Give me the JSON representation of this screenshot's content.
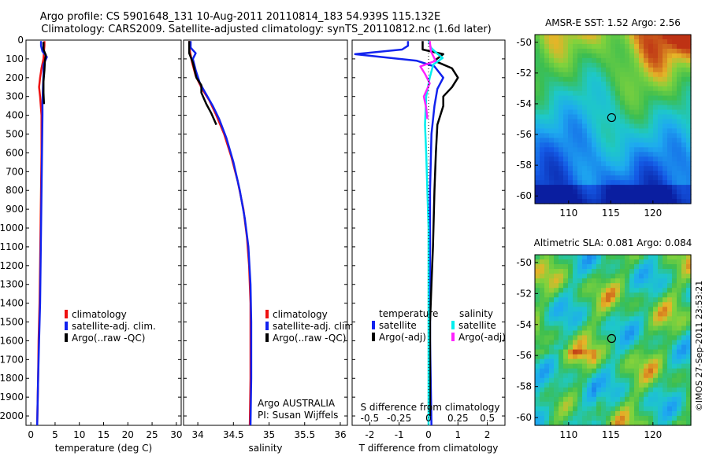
{
  "figure": {
    "title_line1": "Argo profile: CS 5901648_131 10-Aug-2011 20110814_183 54.939S 115.132E",
    "title_line2": "Climatology: CARS2009. Satellite-adjusted climatology: synTS_20110812.nc (1.6d later)",
    "credit": "©IMOS 27-Sep-2011 23:53:21"
  },
  "colors": {
    "climatology": "#ee1111",
    "satellite": "#1122ee",
    "argo": "#000000",
    "salinity_satellite": "#00eeee",
    "salinity_argo": "#ff22ff"
  },
  "chart_data": [
    {
      "type": "line",
      "panel": "temperature",
      "xlabel": "temperature (deg C)",
      "xlim": [
        -1,
        31
      ],
      "xticks": [
        "0",
        "5",
        "10",
        "15",
        "20",
        "25",
        "30"
      ],
      "ylim": [
        2050,
        0
      ],
      "yticks": [
        "0",
        "100",
        "200",
        "300",
        "400",
        "500",
        "600",
        "700",
        "800",
        "900",
        "1000",
        "1100",
        "1200",
        "1300",
        "1400",
        "1500",
        "1600",
        "1700",
        "1800",
        "1900",
        "2000"
      ],
      "legend": [
        "climatology",
        "satellite-adj. clim.",
        "Argo(..raw -QC)"
      ],
      "series": [
        {
          "name": "climatology",
          "color": "#ee1111",
          "points": [
            [
              2.8,
              5
            ],
            [
              2.8,
              30
            ],
            [
              2.7,
              60
            ],
            [
              2.6,
              100
            ],
            [
              2.2,
              150
            ],
            [
              1.9,
              200
            ],
            [
              1.7,
              250
            ],
            [
              1.9,
              300
            ],
            [
              2.2,
              400
            ],
            [
              2.2,
              600
            ],
            [
              2.1,
              800
            ],
            [
              2.0,
              1000
            ],
            [
              1.9,
              1200
            ],
            [
              1.8,
              1400
            ],
            [
              1.6,
              1600
            ],
            [
              1.5,
              1800
            ],
            [
              1.3,
              2050
            ]
          ]
        },
        {
          "name": "satellite-adj. clim.",
          "color": "#1122ee",
          "points": [
            [
              2.1,
              5
            ],
            [
              2.1,
              30
            ],
            [
              2.4,
              60
            ],
            [
              3.3,
              90
            ],
            [
              2.6,
              130
            ],
            [
              2.6,
              180
            ],
            [
              2.5,
              260
            ],
            [
              2.4,
              330
            ],
            [
              2.4,
              400
            ],
            [
              2.3,
              600
            ],
            [
              2.2,
              800
            ],
            [
              2.1,
              1000
            ],
            [
              2.0,
              1200
            ],
            [
              1.9,
              1400
            ],
            [
              1.7,
              1600
            ],
            [
              1.5,
              1800
            ],
            [
              1.3,
              2050
            ]
          ]
        },
        {
          "name": "Argo(..raw -QC)",
          "color": "#000000",
          "points": [
            [
              2.6,
              10
            ],
            [
              2.6,
              50
            ],
            [
              3.1,
              80
            ],
            [
              2.9,
              110
            ],
            [
              2.8,
              160
            ],
            [
              2.6,
              220
            ],
            [
              2.6,
              280
            ],
            [
              2.7,
              340
            ]
          ]
        }
      ]
    },
    {
      "type": "line",
      "panel": "salinity",
      "xlabel": "salinity",
      "xlim": [
        33.8,
        36.1
      ],
      "xticks": [
        "34",
        "34.5",
        "35",
        "35.5",
        "36"
      ],
      "ylim": [
        2050,
        0
      ],
      "legend": [
        "climatology",
        "satellite-adj. clim.",
        "Argo(..raw -QC)"
      ],
      "annotation": [
        "Argo AUSTRALIA",
        "PI: Susan Wijffels"
      ],
      "series": [
        {
          "name": "climatology",
          "color": "#ee1111",
          "points": [
            [
              33.88,
              5
            ],
            [
              33.89,
              60
            ],
            [
              33.92,
              120
            ],
            [
              33.97,
              190
            ],
            [
              34.06,
              260
            ],
            [
              34.16,
              320
            ],
            [
              34.26,
              400
            ],
            [
              34.37,
              500
            ],
            [
              34.47,
              620
            ],
            [
              34.56,
              750
            ],
            [
              34.64,
              900
            ],
            [
              34.69,
              1050
            ],
            [
              34.72,
              1200
            ],
            [
              34.74,
              1400
            ],
            [
              34.74,
              1600
            ],
            [
              34.74,
              1800
            ],
            [
              34.73,
              2050
            ]
          ]
        },
        {
          "name": "satellite-adj. clim.",
          "color": "#1122ee",
          "points": [
            [
              33.9,
              5
            ],
            [
              33.9,
              40
            ],
            [
              33.97,
              70
            ],
            [
              33.93,
              100
            ],
            [
              33.97,
              160
            ],
            [
              34.03,
              230
            ],
            [
              34.12,
              290
            ],
            [
              34.21,
              350
            ],
            [
              34.3,
              420
            ],
            [
              34.4,
              520
            ],
            [
              34.5,
              650
            ],
            [
              34.59,
              800
            ],
            [
              34.66,
              950
            ],
            [
              34.71,
              1100
            ],
            [
              34.74,
              1300
            ],
            [
              34.75,
              1500
            ],
            [
              34.75,
              1800
            ],
            [
              34.74,
              2050
            ]
          ]
        },
        {
          "name": "Argo(..raw -QC)",
          "color": "#000000",
          "points": [
            [
              33.88,
              5
            ],
            [
              33.88,
              70
            ],
            [
              33.93,
              120
            ],
            [
              33.98,
              200
            ],
            [
              34.05,
              240
            ],
            [
              34.05,
              280
            ],
            [
              34.12,
              340
            ],
            [
              34.19,
              390
            ],
            [
              34.26,
              450
            ]
          ]
        }
      ]
    },
    {
      "type": "line",
      "panel": "differences",
      "xlabel": "T difference from climatology",
      "xlim": [
        -2.6,
        2.6
      ],
      "xticks": [
        "-2",
        "-1",
        "0",
        "1",
        "2"
      ],
      "x2label": "S difference from climatology",
      "x2ticks": [
        "-0.5",
        "-0.25",
        "0",
        "0.25",
        "0.5"
      ],
      "ylim": [
        2050,
        0
      ],
      "legend": {
        "temperature_heading": "temperature",
        "salinity_heading": "salinity",
        "temperature": [
          "satellite",
          "Argo(-adj)"
        ],
        "salinity": [
          "satellite",
          "Argo(-adj)"
        ]
      },
      "series": [
        {
          "name": "temperature satellite",
          "color": "#1122ee",
          "points": [
            [
              -0.7,
              5
            ],
            [
              -0.7,
              30
            ],
            [
              -0.9,
              50
            ],
            [
              -2.5,
              75
            ],
            [
              -1.6,
              90
            ],
            [
              -0.4,
              110
            ],
            [
              0.2,
              140
            ],
            [
              0.5,
              200
            ],
            [
              0.3,
              260
            ],
            [
              0.2,
              350
            ],
            [
              0.1,
              500
            ],
            [
              0.05,
              800
            ],
            [
              0.05,
              1200
            ],
            [
              0.05,
              1600
            ],
            [
              0.1,
              2050
            ]
          ]
        },
        {
          "name": "temperature Argo(-adj)",
          "color": "#000000",
          "points": [
            [
              -0.2,
              5
            ],
            [
              -0.2,
              50
            ],
            [
              0.5,
              75
            ],
            [
              0.2,
              110
            ],
            [
              0.8,
              150
            ],
            [
              1.0,
              200
            ],
            [
              0.8,
              250
            ],
            [
              0.5,
              300
            ],
            [
              0.5,
              350
            ],
            [
              0.3,
              450
            ],
            [
              0.25,
              600
            ],
            [
              0.2,
              800
            ],
            [
              0.15,
              1100
            ],
            [
              0.1,
              1300
            ],
            [
              0.05,
              1500
            ],
            [
              0.05,
              1800
            ],
            [
              0.05,
              2000
            ]
          ]
        },
        {
          "name": "salinity satellite",
          "color": "#00eeee",
          "points": [
            [
              0,
              5
            ],
            [
              0.02,
              40
            ],
            [
              0.07,
              70
            ],
            [
              0.12,
              95
            ],
            [
              0.04,
              130
            ],
            [
              0.01,
              200
            ],
            [
              -0.02,
              300
            ],
            [
              -0.03,
              450
            ],
            [
              -0.02,
              600
            ],
            [
              -0.01,
              800
            ],
            [
              0,
              1000
            ],
            [
              0,
              1200
            ],
            [
              0,
              1500
            ],
            [
              0,
              1800
            ],
            [
              0,
              2050
            ]
          ]
        },
        {
          "name": "salinity Argo(-adj)",
          "color": "#ff22ff",
          "points": [
            [
              0.01,
              5
            ],
            [
              0.02,
              60
            ],
            [
              0.06,
              110
            ],
            [
              -0.07,
              140
            ],
            [
              -0.03,
              180
            ],
            [
              0.01,
              230
            ],
            [
              -0.04,
              300
            ],
            [
              -0.02,
              360
            ],
            [
              -0.01,
              420
            ]
          ]
        }
      ]
    },
    {
      "type": "heatmap",
      "panel": "sst-map",
      "title": "AMSR-E SST: 1.52 Argo: 2.56",
      "xlim": [
        106,
        124.5
      ],
      "ylim": [
        -60.5,
        -49.5
      ],
      "xticks": [
        "110",
        "115",
        "120"
      ],
      "yticks": [
        "-50",
        "-52",
        "-54",
        "-56",
        "-58",
        "-60"
      ],
      "marker": [
        115.1,
        -54.9
      ]
    },
    {
      "type": "heatmap",
      "panel": "sla-map",
      "title": "Altimetric SLA: 0.081 Argo: 0.084",
      "xlim": [
        106,
        124.5
      ],
      "ylim": [
        -60.5,
        -49.5
      ],
      "xticks": [
        "110",
        "115",
        "120"
      ],
      "yticks": [
        "-50",
        "-52",
        "-54",
        "-56",
        "-58",
        "-60"
      ],
      "marker": [
        115.1,
        -54.9
      ]
    }
  ]
}
